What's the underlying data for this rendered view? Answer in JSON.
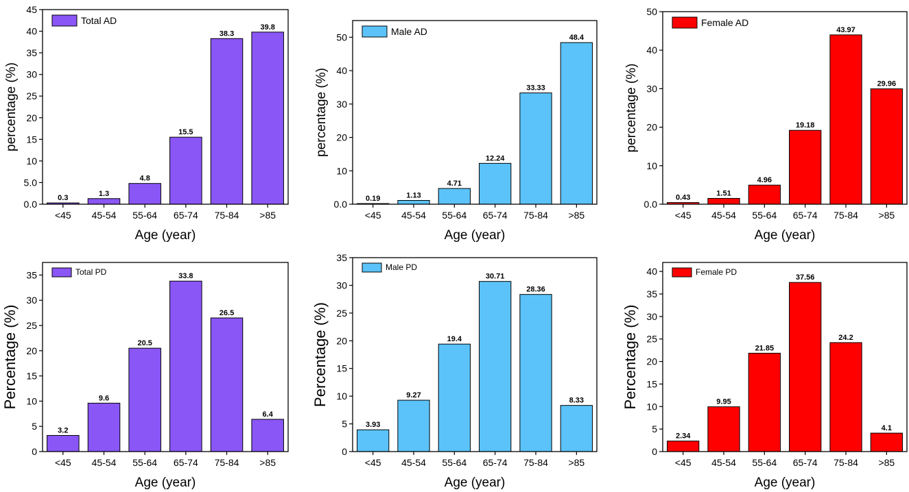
{
  "chart_data": [
    {
      "type": "bar",
      "legend": "Total AD",
      "color": "#8a56f6",
      "categories": [
        "<45",
        "45-54",
        "55-64",
        "65-74",
        "75-84",
        ">85"
      ],
      "values": [
        0.3,
        1.3,
        4.8,
        15.5,
        38.3,
        39.8
      ],
      "value_labels": [
        "0.3",
        "1.3",
        "4.8",
        "15.5",
        "38.3",
        "39.8"
      ],
      "xlabel": "Age (year)",
      "ylabel": "percentage (%)",
      "ylim": [
        0,
        45
      ],
      "yticks": [
        0,
        5,
        10,
        15,
        20,
        25,
        30,
        35,
        40,
        45
      ],
      "ytick_labels": [
        "0.0",
        "5.0",
        "10",
        "15",
        "20",
        "25",
        "30",
        "35",
        "40",
        "45"
      ],
      "legend_position": "top-left"
    },
    {
      "type": "bar",
      "legend": "Male AD",
      "color": "#5bc3fa",
      "categories": [
        "<45",
        "45-54",
        "55-64",
        "65-74",
        "75-84",
        ">85"
      ],
      "values": [
        0.19,
        1.13,
        4.71,
        12.24,
        33.33,
        48.4
      ],
      "value_labels": [
        "0.19",
        "1.13",
        "4.71",
        "12.24",
        "33.33",
        "48.4"
      ],
      "xlabel": "Age (year)",
      "ylabel": "percentage (%)",
      "ylim": [
        0,
        55
      ],
      "yticks": [
        0,
        10,
        20,
        30,
        40,
        50
      ],
      "ytick_labels": [
        "0.0",
        "10",
        "20",
        "30",
        "40",
        "50"
      ],
      "legend_position": "top-left"
    },
    {
      "type": "bar",
      "legend": "Female AD",
      "color": "#ff0000",
      "categories": [
        "<45",
        "45-54",
        "55-64",
        "65-74",
        "75-84",
        ">85"
      ],
      "values": [
        0.43,
        1.51,
        4.96,
        19.18,
        43.97,
        29.96
      ],
      "value_labels": [
        "0.43",
        "1.51",
        "4.96",
        "19.18",
        "43.97",
        "29.96"
      ],
      "xlabel": "Age (year)",
      "ylabel": "percentage (%)",
      "ylim": [
        0,
        50
      ],
      "yticks": [
        0,
        10,
        20,
        30,
        40,
        50
      ],
      "ytick_labels": [
        "0.0",
        "10",
        "20",
        "30",
        "40",
        "50"
      ],
      "legend_position": "top-left"
    },
    {
      "type": "bar",
      "legend": "Total PD",
      "color": "#8a56f6",
      "categories": [
        "<45",
        "45-54",
        "55-64",
        "65-74",
        "75-84",
        ">85"
      ],
      "values": [
        3.2,
        9.6,
        20.5,
        33.8,
        26.5,
        6.4
      ],
      "value_labels": [
        "3.2",
        "9.6",
        "20.5",
        "33.8",
        "26.5",
        "6.4"
      ],
      "xlabel": "Age (year)",
      "ylabel": "Percentage (%)",
      "ylim": [
        0,
        37.5
      ],
      "yticks": [
        0,
        5,
        10,
        15,
        20,
        25,
        30,
        35
      ],
      "ytick_labels": [
        "0",
        "5",
        "10",
        "15",
        "20",
        "25",
        "30",
        "35"
      ],
      "legend_position": "top-left"
    },
    {
      "type": "bar",
      "legend": "Male PD",
      "color": "#5bc3fa",
      "categories": [
        "<45",
        "45-54",
        "55-64",
        "65-74",
        "75-84",
        ">85"
      ],
      "values": [
        3.93,
        9.27,
        19.4,
        30.71,
        28.36,
        8.33
      ],
      "value_labels": [
        "3.93",
        "9.27",
        "19.4",
        "30.71",
        "28.36",
        "8.33"
      ],
      "xlabel": "Age (year)",
      "ylabel": "Percentage (%)",
      "ylim": [
        0,
        35
      ],
      "yticks": [
        0,
        5,
        10,
        15,
        20,
        25,
        30,
        35
      ],
      "ytick_labels": [
        "0",
        "5",
        "10",
        "15",
        "20",
        "25",
        "30",
        "35"
      ],
      "legend_position": "top-left"
    },
    {
      "type": "bar",
      "legend": "Female PD",
      "color": "#ff0000",
      "categories": [
        "<45",
        "45-54",
        "55-64",
        "65-74",
        "75-84",
        ">85"
      ],
      "values": [
        2.34,
        9.95,
        21.85,
        37.56,
        24.2,
        4.1
      ],
      "value_labels": [
        "2.34",
        "9.95",
        "21.85",
        "37.56",
        "24.2",
        "4.1"
      ],
      "xlabel": "Age (year)",
      "ylabel": "Percentage (%)",
      "ylim": [
        0,
        42
      ],
      "yticks": [
        0,
        5,
        10,
        15,
        20,
        25,
        30,
        35,
        40
      ],
      "ytick_labels": [
        "0",
        "5",
        "10",
        "15",
        "20",
        "25",
        "30",
        "35",
        "40"
      ],
      "legend_position": "top-left"
    }
  ]
}
